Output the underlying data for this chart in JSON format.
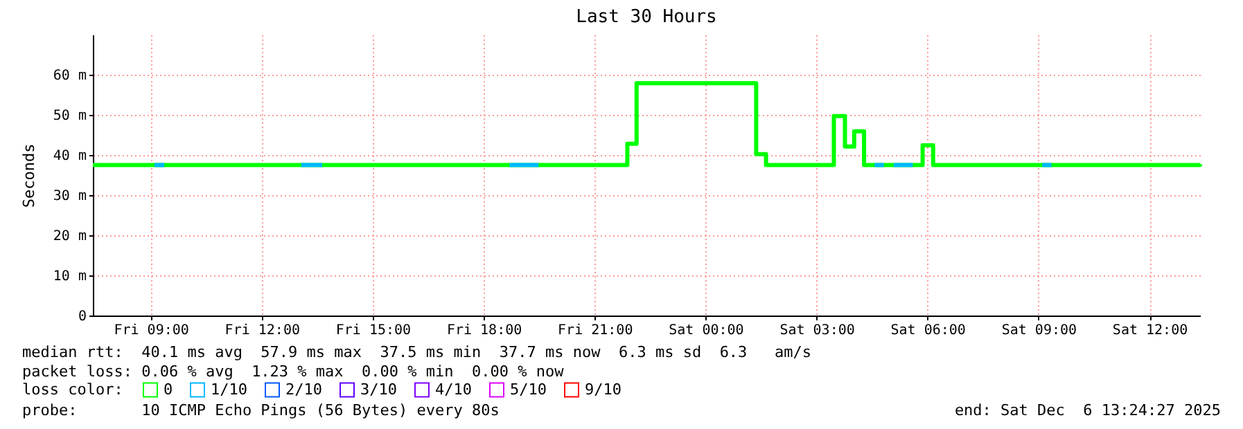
{
  "chart_data": {
    "type": "step",
    "title": "Last 30 Hours",
    "ylabel": "Seconds",
    "legend_title": "loss color:",
    "xlim": [
      "2025-12-05T07:26",
      "2025-12-06T13:22"
    ],
    "xticks": [
      {
        "value": "2025-12-05T09:00",
        "label": "Fri 09:00"
      },
      {
        "value": "2025-12-05T12:00",
        "label": "Fri 12:00"
      },
      {
        "value": "2025-12-05T15:00",
        "label": "Fri 15:00"
      },
      {
        "value": "2025-12-05T18:00",
        "label": "Fri 18:00"
      },
      {
        "value": "2025-12-05T21:00",
        "label": "Fri 21:00"
      },
      {
        "value": "2025-12-06T00:00",
        "label": "Sat 00:00"
      },
      {
        "value": "2025-12-06T03:00",
        "label": "Sat 03:00"
      },
      {
        "value": "2025-12-06T06:00",
        "label": "Sat 06:00"
      },
      {
        "value": "2025-12-06T09:00",
        "label": "Sat 09:00"
      },
      {
        "value": "2025-12-06T12:00",
        "label": "Sat 12:00"
      }
    ],
    "ylim": [
      0,
      70
    ],
    "yticks": [
      0,
      {
        "value": 10,
        "label": "10 m"
      },
      {
        "value": 20,
        "label": "20 m"
      },
      {
        "value": 30,
        "label": "30 m"
      },
      {
        "value": 40,
        "label": "40 m"
      },
      {
        "value": 50,
        "label": "50 m"
      },
      {
        "value": 60,
        "label": "60 m"
      }
    ],
    "grid": true,
    "legend": "bottom left",
    "line_style": "solid",
    "marker": "none",
    "series": [
      {
        "name": "0",
        "color": "#00ff00",
        "x": [
          "2025-12-05T07:26",
          "2025-12-05T21:53",
          "2025-12-05T22:08",
          "2025-12-06T01:22",
          "2025-12-06T01:38",
          "2025-12-06T03:28",
          "2025-12-06T03:46",
          "2025-12-06T04:01",
          "2025-12-06T04:17",
          "2025-12-06T05:52",
          "2025-12-06T06:09",
          "2025-12-06T13:22"
        ],
        "values": [
          37.5,
          42.8,
          57.9,
          40.2,
          37.5,
          49.7,
          42.1,
          45.9,
          37.5,
          42.4,
          37.5,
          37.7
        ]
      },
      {
        "name": "1/10",
        "color": "#00b8ff",
        "x": [
          "2025-12-05T09:06",
          "2025-12-05T09:22",
          "2025-12-05T09:23",
          "2025-12-05T13:04",
          "2025-12-05T13:38",
          "2025-12-05T13:39",
          "2025-12-05T18:42",
          "2025-12-05T19:29",
          "2025-12-05T19:30",
          "2025-12-06T04:34",
          "2025-12-06T04:49",
          "2025-12-06T04:50",
          "2025-12-06T05:05",
          "2025-12-06T05:36",
          "2025-12-06T05:37",
          "2025-12-06T09:06",
          "2025-12-06T09:21"
        ],
        "values": [
          37.5,
          37.5,
          null,
          37.5,
          37.5,
          null,
          37.5,
          37.5,
          null,
          37.5,
          37.5,
          null,
          37.5,
          37.5,
          null,
          37.5,
          37.5
        ]
      },
      {
        "name": "2/10",
        "color": "#0059ff"
      },
      {
        "name": "3/10",
        "color": "#5e00ff"
      },
      {
        "name": "4/10",
        "color": "#7e00ff"
      },
      {
        "name": "5/10",
        "color": "#dd00ff"
      },
      {
        "name": "9/10",
        "color": "#ff0000"
      }
    ],
    "annotations": [
      "median rtt:  40.1 ms avg  57.9 ms max  37.5 ms min  37.7 ms now  6.3 ms sd  6.3   am/s",
      "packet loss: 0.06 % avg  1.23 % max  0.00 % min  0.00 % now",
      "probe:       10 ICMP Echo Pings (56 Bytes) every 80s",
      "end: Sat Dec  6 13:24:27 2025"
    ]
  }
}
